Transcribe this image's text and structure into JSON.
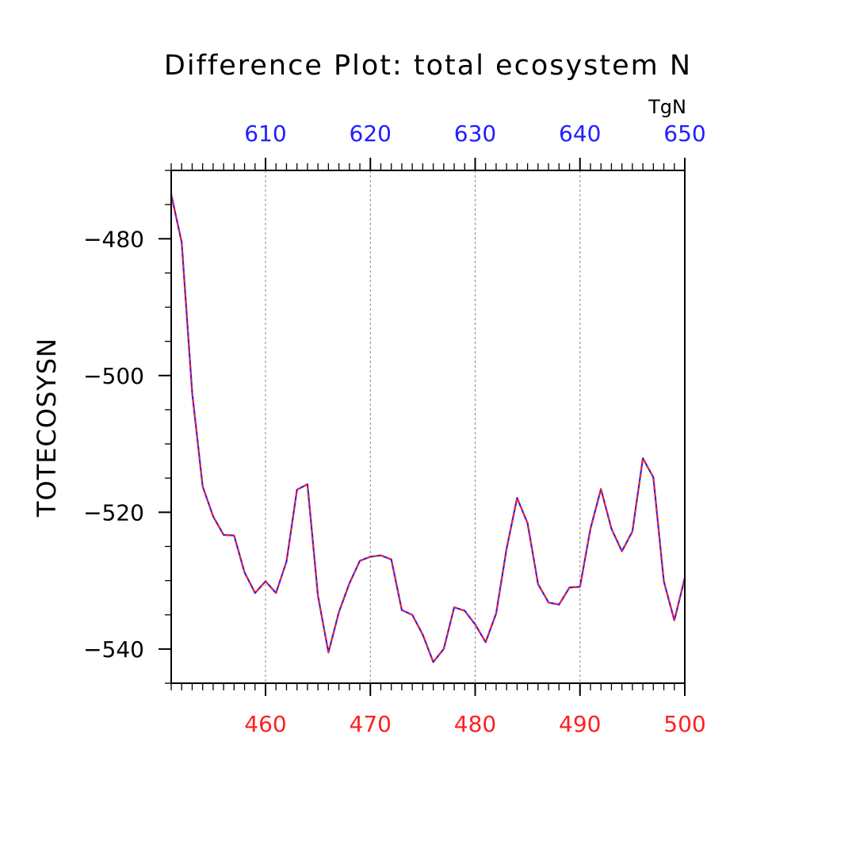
{
  "chart_data": {
    "type": "line",
    "title": "Difference Plot: total ecosystem N",
    "units_label": "TgN",
    "ylabel": "TOTECOSYSN",
    "xlabel": "",
    "xlim": [
      451,
      500
    ],
    "ylim": [
      -545,
      -470
    ],
    "x_bottom_ticks": [
      460,
      470,
      480,
      490,
      500
    ],
    "x_bottom_color": "#ff2020",
    "x_top_ticks": [
      610,
      620,
      630,
      640,
      650
    ],
    "x_top_offset": 150,
    "x_top_color": "#2020ff",
    "y_major_ticks": [
      -480,
      -500,
      -520,
      -540
    ],
    "y_minor_step": 5,
    "x_minor_step": 1,
    "grid": "vertical dashed at major ticks",
    "series": [
      {
        "color": "#2020ff",
        "dash_color": "#ff2020",
        "x": [
          451,
          452,
          453,
          454,
          455,
          456,
          457,
          458,
          459,
          460,
          461,
          462,
          463,
          464,
          465,
          466,
          467,
          468,
          469,
          470,
          471,
          472,
          473,
          474,
          475,
          476,
          477,
          478,
          479,
          480,
          481,
          482,
          483,
          484,
          485,
          486,
          487,
          488,
          489,
          490,
          491,
          492,
          493,
          494,
          495,
          496,
          497,
          498,
          499,
          500
        ],
        "values": [
          -473.5,
          -480.5,
          -502.5,
          -516.2,
          -520.6,
          -523.3,
          -523.4,
          -528.8,
          -531.8,
          -530.1,
          -531.8,
          -527.2,
          -516.7,
          -515.9,
          -532.2,
          -540.5,
          -534.6,
          -530.4,
          -527.1,
          -526.5,
          -526.3,
          -526.9,
          -534.3,
          -535.0,
          -537.9,
          -541.9,
          -540.0,
          -533.9,
          -534.4,
          -536.4,
          -539.0,
          -534.8,
          -525.3,
          -517.9,
          -521.6,
          -530.5,
          -533.2,
          -533.5,
          -531.0,
          -530.9,
          -522.4,
          -516.6,
          -522.4,
          -525.7,
          -522.8,
          -512.1,
          -514.9,
          -530.1,
          -535.8,
          -529.6
        ]
      }
    ]
  }
}
